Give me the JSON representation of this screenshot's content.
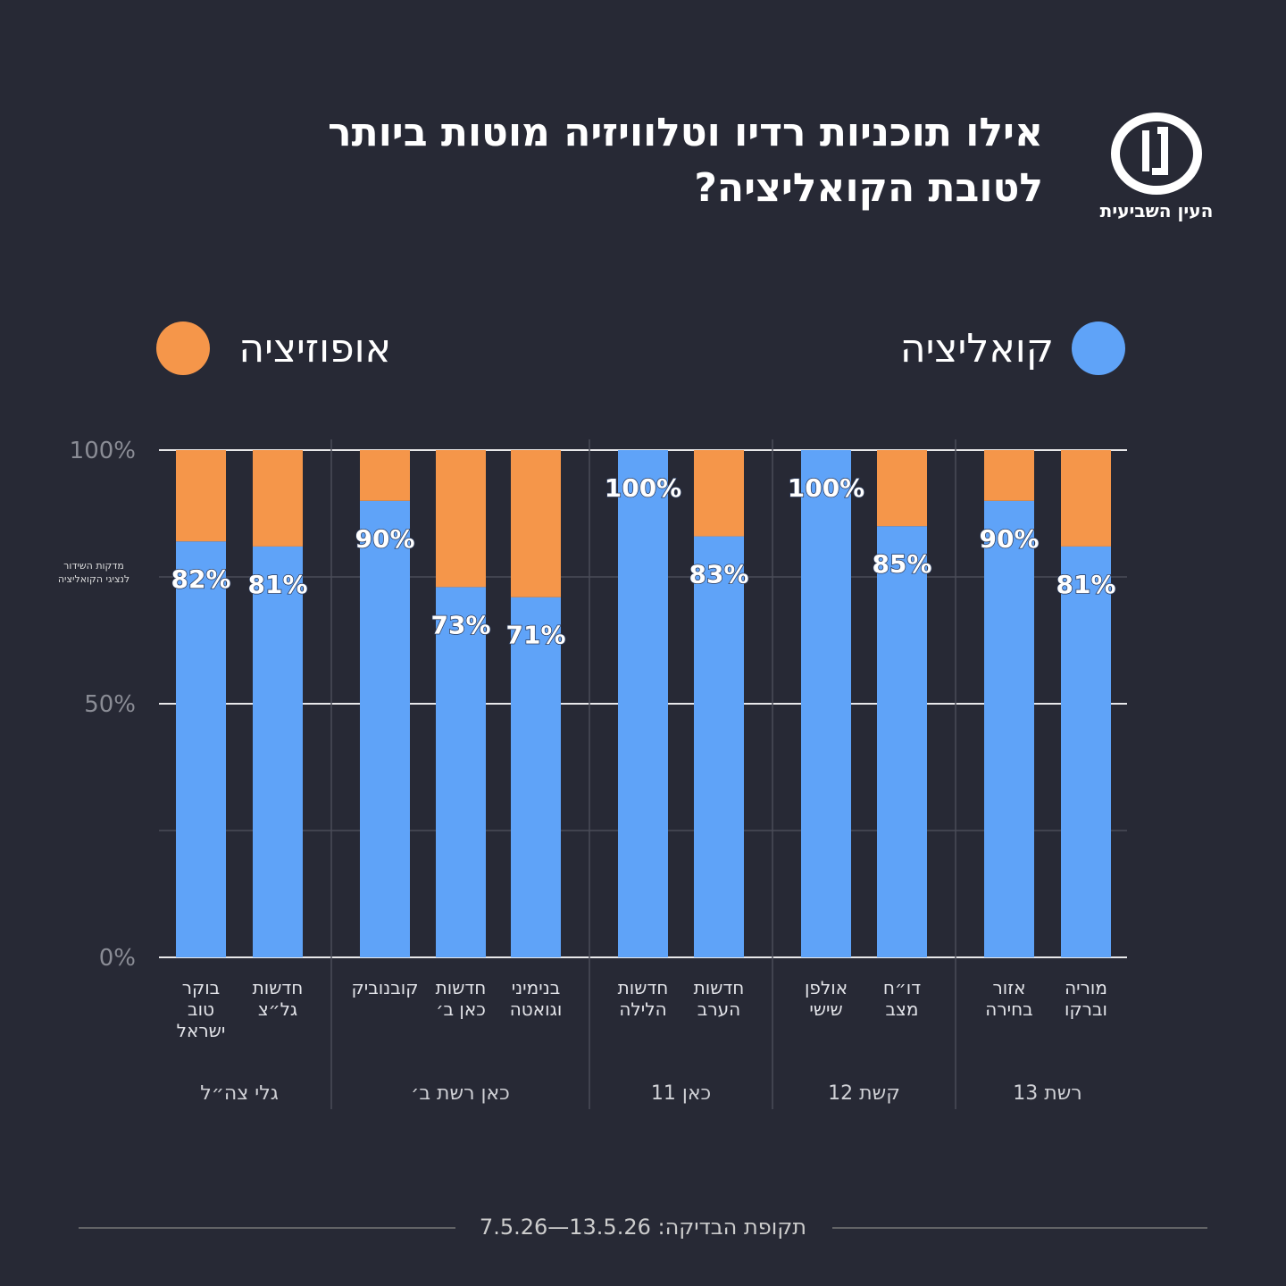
{
  "chart_data": {
    "type": "bar",
    "stacked": true,
    "title": "אילו תוכניות רדיו וטלוויזיה מוטות ביותר\nלטובת הקואליציה?",
    "brand": "העין השביעית",
    "y_label": "מדקות השידור\nלנציגי הקואליציה",
    "footer": "תקופת הבדיקה: 13.5.26—7.5.26",
    "categories": [
      "בוקר\nטוב\nישראל",
      "חדשות\nגל״צ",
      "קובנוביק",
      "חדשות\nכאן ב׳",
      "בנימיני\nוגואטה",
      "חדשות\nהלילה",
      "חדשות\nהערב",
      "אולפן\nשישי",
      "דו״ח\nמצב",
      "אזור\nבחירה",
      "מוריה\nוברקו"
    ],
    "groups": [
      {
        "label": "גלי צה״ל",
        "size": 2
      },
      {
        "label": "כאן רשת ב׳",
        "size": 3
      },
      {
        "label": "כאן 11",
        "size": 2
      },
      {
        "label": "קשת 12",
        "size": 2
      },
      {
        "label": "רשת 13",
        "size": 2
      }
    ],
    "series": [
      {
        "name": "קואליציה",
        "color": "#5fa3f8",
        "values": [
          82,
          81,
          90,
          73,
          71,
          100,
          83,
          100,
          85,
          90,
          81
        ],
        "value_labels": [
          "82%",
          "81%",
          "90%",
          "73%",
          "71%",
          "100%",
          "83%",
          "100%",
          "85%",
          "90%",
          "81%"
        ]
      },
      {
        "name": "אופוזיציה",
        "color": "#f5964a",
        "values": [
          18,
          19,
          10,
          27,
          29,
          0,
          17,
          0,
          15,
          10,
          19
        ]
      }
    ],
    "ylim": [
      0,
      100
    ],
    "yticks": [
      {
        "value": 0,
        "label": "0%"
      },
      {
        "value": 50,
        "label": "50%"
      },
      {
        "value": 100,
        "label": "100%"
      }
    ],
    "minor_yticks": [
      25,
      75
    ],
    "grid": true
  }
}
